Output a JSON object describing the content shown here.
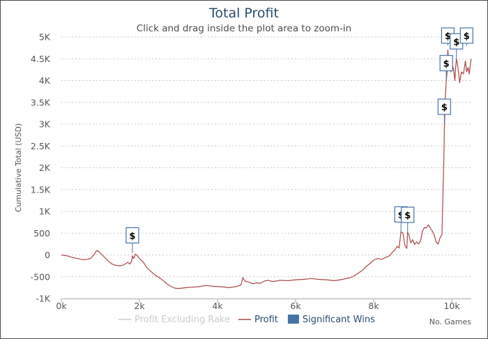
{
  "title": "Total Profit",
  "subtitle": "Click and drag inside the plot area to zoom-in",
  "chart_data": {
    "type": "line",
    "ylabel": "Cumulative Total (USD)",
    "xlabel": "No. Games",
    "xlim": [
      0,
      10500
    ],
    "ylim": [
      -1000,
      5000
    ],
    "x_ticks": [
      "0k",
      "2k",
      "4k",
      "6k",
      "8k",
      "10k"
    ],
    "x_tick_values": [
      0,
      2000,
      4000,
      6000,
      8000,
      10000
    ],
    "y_ticks": [
      "-1K",
      "-500",
      "0",
      "500",
      "1K",
      "1.5K",
      "2K",
      "2.5K",
      "3K",
      "3.5K",
      "4K",
      "4.5K",
      "5K"
    ],
    "y_tick_values": [
      -1000,
      -500,
      0,
      500,
      1000,
      1500,
      2000,
      2500,
      3000,
      3500,
      4000,
      4500,
      5000
    ],
    "grid": "horizontal dotted",
    "legend": [
      {
        "name": "Profit Excluding Rake",
        "style": "line",
        "color": "#cccccc",
        "visible": false
      },
      {
        "name": "Profit",
        "style": "line",
        "color": "#aa4643",
        "visible": true
      },
      {
        "name": "Significant Wins",
        "style": "square",
        "color": "#4572a7",
        "visible": true
      }
    ],
    "series": [
      {
        "name": "Profit",
        "color": "#aa4643",
        "points": [
          [
            0,
            0
          ],
          [
            150,
            -20
          ],
          [
            300,
            -60
          ],
          [
            450,
            -90
          ],
          [
            550,
            -110
          ],
          [
            650,
            -100
          ],
          [
            750,
            -80
          ],
          [
            850,
            20
          ],
          [
            900,
            100
          ],
          [
            960,
            80
          ],
          [
            1000,
            40
          ],
          [
            1100,
            -50
          ],
          [
            1200,
            -140
          ],
          [
            1300,
            -210
          ],
          [
            1400,
            -240
          ],
          [
            1500,
            -250
          ],
          [
            1600,
            -230
          ],
          [
            1700,
            -170
          ],
          [
            1750,
            -210
          ],
          [
            1800,
            -150
          ],
          [
            1820,
            -20
          ],
          [
            1850,
            -80
          ],
          [
            1900,
            20
          ],
          [
            1950,
            -20
          ],
          [
            2000,
            -80
          ],
          [
            2100,
            -170
          ],
          [
            2200,
            -300
          ],
          [
            2300,
            -380
          ],
          [
            2400,
            -460
          ],
          [
            2500,
            -520
          ],
          [
            2600,
            -580
          ],
          [
            2700,
            -660
          ],
          [
            2800,
            -720
          ],
          [
            2900,
            -760
          ],
          [
            3000,
            -770
          ],
          [
            3100,
            -760
          ],
          [
            3200,
            -750
          ],
          [
            3300,
            -740
          ],
          [
            3500,
            -730
          ],
          [
            3700,
            -700
          ],
          [
            3900,
            -720
          ],
          [
            4100,
            -730
          ],
          [
            4300,
            -750
          ],
          [
            4500,
            -720
          ],
          [
            4600,
            -690
          ],
          [
            4650,
            -520
          ],
          [
            4700,
            -600
          ],
          [
            4800,
            -620
          ],
          [
            4900,
            -660
          ],
          [
            5000,
            -640
          ],
          [
            5100,
            -650
          ],
          [
            5200,
            -600
          ],
          [
            5300,
            -580
          ],
          [
            5400,
            -610
          ],
          [
            5500,
            -600
          ],
          [
            5600,
            -580
          ],
          [
            5800,
            -590
          ],
          [
            6000,
            -570
          ],
          [
            6200,
            -560
          ],
          [
            6400,
            -540
          ],
          [
            6600,
            -560
          ],
          [
            6800,
            -570
          ],
          [
            7000,
            -590
          ],
          [
            7200,
            -560
          ],
          [
            7400,
            -520
          ],
          [
            7500,
            -480
          ],
          [
            7600,
            -420
          ],
          [
            7700,
            -360
          ],
          [
            7800,
            -270
          ],
          [
            7900,
            -200
          ],
          [
            8000,
            -120
          ],
          [
            8100,
            -80
          ],
          [
            8200,
            -100
          ],
          [
            8300,
            -60
          ],
          [
            8400,
            -20
          ],
          [
            8500,
            80
          ],
          [
            8550,
            120
          ],
          [
            8600,
            200
          ],
          [
            8650,
            160
          ],
          [
            8700,
            530
          ],
          [
            8750,
            500
          ],
          [
            8800,
            220
          ],
          [
            8850,
            150
          ],
          [
            8870,
            520
          ],
          [
            8900,
            470
          ],
          [
            8950,
            280
          ],
          [
            9000,
            350
          ],
          [
            9050,
            240
          ],
          [
            9100,
            300
          ],
          [
            9150,
            250
          ],
          [
            9200,
            320
          ],
          [
            9250,
            540
          ],
          [
            9300,
            630
          ],
          [
            9350,
            620
          ],
          [
            9400,
            690
          ],
          [
            9450,
            620
          ],
          [
            9500,
            550
          ],
          [
            9550,
            460
          ],
          [
            9600,
            300
          ],
          [
            9650,
            250
          ],
          [
            9700,
            390
          ],
          [
            9750,
            470
          ],
          [
            9800,
            2300
          ],
          [
            9810,
            2900
          ],
          [
            9820,
            3150
          ],
          [
            9840,
            3700
          ],
          [
            9860,
            4000
          ],
          [
            9880,
            4200
          ],
          [
            9900,
            4700
          ],
          [
            9920,
            4450
          ],
          [
            9950,
            4350
          ],
          [
            9980,
            4200
          ],
          [
            10000,
            4400
          ],
          [
            10050,
            4250
          ],
          [
            10080,
            4000
          ],
          [
            10100,
            4300
          ],
          [
            10120,
            4500
          ],
          [
            10150,
            4350
          ],
          [
            10180,
            4150
          ],
          [
            10200,
            3950
          ],
          [
            10250,
            4200
          ],
          [
            10300,
            4150
          ],
          [
            10350,
            4450
          ],
          [
            10380,
            4200
          ],
          [
            10420,
            4300
          ],
          [
            10450,
            4150
          ],
          [
            10480,
            4400
          ],
          [
            10500,
            4500
          ]
        ]
      }
    ],
    "flags": [
      {
        "label": "$",
        "x": 1820,
        "y": 50
      },
      {
        "label": "$",
        "x": 8700,
        "y": 530
      },
      {
        "label": "$",
        "x": 8870,
        "y": 520
      },
      {
        "label": "$",
        "x": 9810,
        "y": 3000
      },
      {
        "label": "$",
        "x": 9860,
        "y": 4000
      },
      {
        "label": "$",
        "x": 9900,
        "y": 4800
      },
      {
        "label": "$",
        "x": 10120,
        "y": 4500
      },
      {
        "label": "$",
        "x": 10380,
        "y": 4800
      }
    ]
  }
}
